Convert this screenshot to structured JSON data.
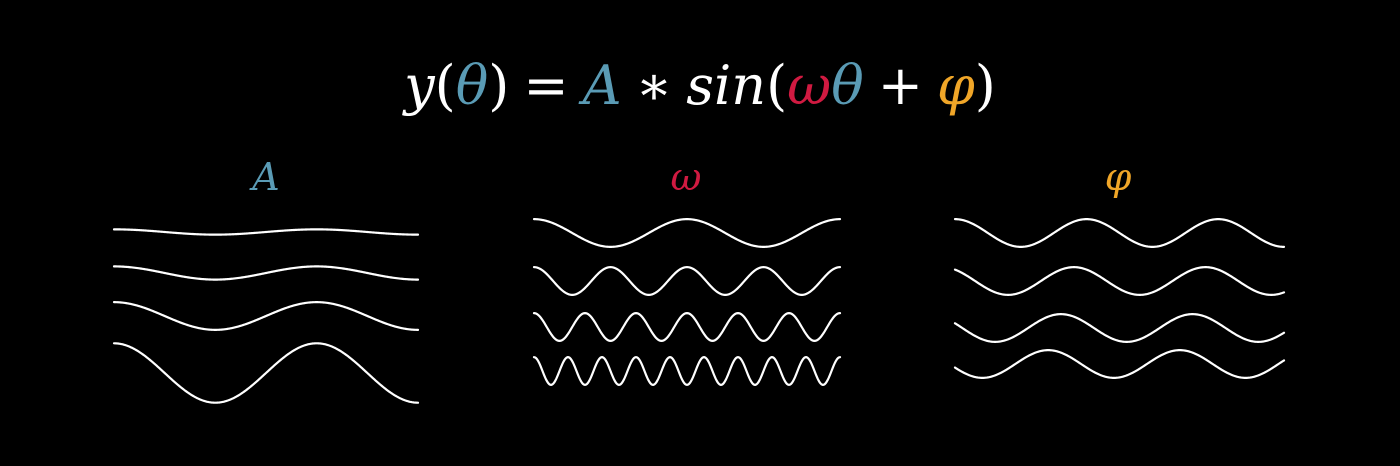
{
  "colors": {
    "background": "#000000",
    "text": "#ffffff",
    "theta": "#5a9bb5",
    "amplitude": "#5a9bb5",
    "omega": "#d11a41",
    "phi": "#f0a628",
    "wave_stroke": "#ffffff"
  },
  "equation": {
    "y": "y",
    "open_paren": "(",
    "theta": "θ",
    "close_paren": ")",
    "equals": "=",
    "amplitude": "A",
    "times": "∗",
    "sin": "sin",
    "open_paren_2": "(",
    "omega": "ω",
    "theta_2": "θ",
    "plus": "+",
    "phi": "φ",
    "close_paren_2": ")"
  },
  "panels": [
    {
      "label": "A",
      "color_key": "amplitude",
      "waves": [
        {
          "amplitude": 0.08,
          "cycles": 1.5,
          "phase_deg": 0
        },
        {
          "amplitude": 0.2,
          "cycles": 1.5,
          "phase_deg": 0
        },
        {
          "amplitude": 0.42,
          "cycles": 1.5,
          "phase_deg": 0
        },
        {
          "amplitude": 0.9,
          "cycles": 1.5,
          "phase_deg": 0
        }
      ]
    },
    {
      "label": "ω",
      "color_key": "omega",
      "waves": [
        {
          "amplitude": 0.42,
          "cycles": 2,
          "phase_deg": 0
        },
        {
          "amplitude": 0.42,
          "cycles": 4,
          "phase_deg": 0
        },
        {
          "amplitude": 0.42,
          "cycles": 6,
          "phase_deg": 0
        },
        {
          "amplitude": 0.42,
          "cycles": 9,
          "phase_deg": 0
        }
      ]
    },
    {
      "label": "φ",
      "color_key": "phi",
      "waves": [
        {
          "amplitude": 0.42,
          "cycles": 2.5,
          "phase_deg": 0
        },
        {
          "amplitude": 0.42,
          "cycles": 2.5,
          "phase_deg": 35
        },
        {
          "amplitude": 0.42,
          "cycles": 2.5,
          "phase_deg": 70
        },
        {
          "amplitude": 0.42,
          "cycles": 2.5,
          "phase_deg": 105
        }
      ]
    }
  ]
}
